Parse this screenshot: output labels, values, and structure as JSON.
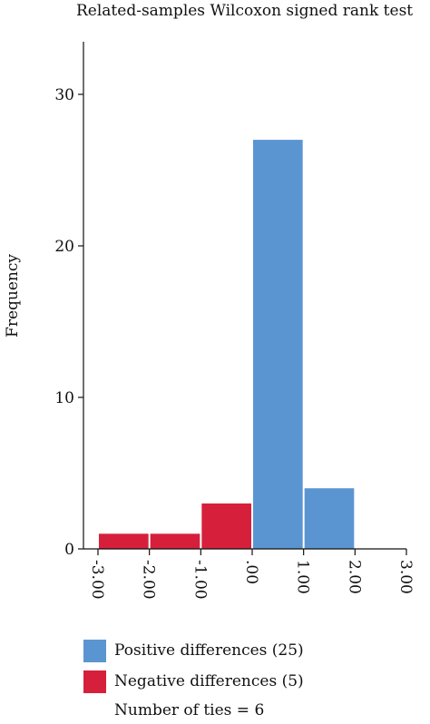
{
  "title": "Related-samples Wilcoxon signed rank test",
  "colors": {
    "positive": "#5b95d1",
    "negative": "#d6203b",
    "axis": "#111111"
  },
  "chart_data": {
    "type": "bar",
    "title": "Related-samples Wilcoxon signed rank test",
    "xlabel": "",
    "ylabel": "Frequency",
    "ylim": [
      0,
      34
    ],
    "xlim": [
      -3.0,
      3.0
    ],
    "yticks": [
      0,
      10,
      20,
      30
    ],
    "xticks": [
      "-3.00",
      "-2.00",
      "-1.00",
      ".00",
      "1.00",
      "2.00",
      "3.00"
    ],
    "grid": false,
    "legend_position": "bottom",
    "series": [
      {
        "name": "Positive differences (25)",
        "color": "#5b95d1",
        "bins": [
          {
            "x0": 0.0,
            "x1": 1.0,
            "count": 27
          },
          {
            "x0": 1.0,
            "x1": 2.0,
            "count": 4
          }
        ]
      },
      {
        "name": "Negative differences (5)",
        "color": "#d6203b",
        "bins": [
          {
            "x0": -3.0,
            "x1": -2.0,
            "count": 1
          },
          {
            "x0": -2.0,
            "x1": -1.0,
            "count": 1
          },
          {
            "x0": -1.0,
            "x1": 0.0,
            "count": 3
          }
        ]
      }
    ],
    "note": "Number of ties = 6"
  },
  "legend": {
    "positive_label": "Positive differences (25)",
    "negative_label": "Negative differences (5)",
    "ties_label": "Number of ties = 6"
  }
}
